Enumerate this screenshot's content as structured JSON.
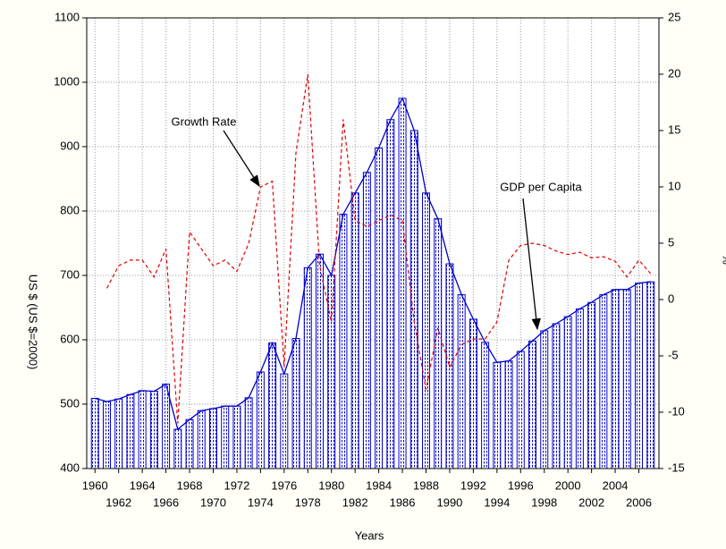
{
  "chart_data": {
    "type": "bar",
    "xlabel": "Years",
    "ylabel": "US $ (US $=2000)",
    "y2label": "%",
    "x": [
      1960,
      1961,
      1962,
      1963,
      1964,
      1965,
      1966,
      1967,
      1968,
      1969,
      1970,
      1971,
      1972,
      1973,
      1974,
      1975,
      1976,
      1977,
      1978,
      1979,
      1980,
      1981,
      1982,
      1983,
      1984,
      1985,
      1986,
      1987,
      1988,
      1989,
      1990,
      1991,
      1992,
      1993,
      1994,
      1995,
      1996,
      1997,
      1998,
      1999,
      2000,
      2001,
      2002,
      2003,
      2004,
      2005,
      2006,
      2007
    ],
    "xlim": [
      1959.3,
      2007.7
    ],
    "xticks": [
      1960,
      1962,
      1964,
      1966,
      1968,
      1970,
      1972,
      1974,
      1976,
      1978,
      1980,
      1982,
      1984,
      1986,
      1988,
      1990,
      1992,
      1994,
      1996,
      1998,
      2000,
      2002,
      2004,
      2006
    ],
    "ylim": [
      400,
      1100
    ],
    "yticks": [
      400,
      500,
      600,
      700,
      800,
      900,
      1000,
      1100
    ],
    "y2lim": [
      -15,
      25
    ],
    "y2ticks": [
      -15,
      -10,
      -5,
      0,
      5,
      10,
      15,
      20,
      25
    ],
    "grid": true,
    "series": [
      {
        "name": "GDP per Capita",
        "type": "bar",
        "color": "#0000cc",
        "values": [
          509,
          504,
          508,
          515,
          521,
          520,
          531,
          461,
          476,
          490,
          493,
          497,
          497,
          510,
          550,
          595,
          547,
          602,
          712,
          733,
          700,
          795,
          828,
          860,
          898,
          942,
          975,
          925,
          828,
          788,
          718,
          670,
          632,
          596,
          565,
          567,
          582,
          598,
          614,
          625,
          636,
          648,
          658,
          670,
          678,
          678,
          688,
          690
        ]
      },
      {
        "name": "Growth Rate",
        "type": "line",
        "axis": "y2",
        "color": "#e00000",
        "values": [
          null,
          1.0,
          3.0,
          3.5,
          3.5,
          2.0,
          4.5,
          -11,
          6,
          4.5,
          3,
          3.5,
          2.5,
          5,
          10,
          10.5,
          -6,
          13,
          20,
          3,
          -2,
          16,
          7,
          6.5,
          7,
          7.5,
          7,
          -2,
          -8,
          -2.5,
          -6,
          -4,
          -3.5,
          -3.5,
          -2,
          3.5,
          4.8,
          5,
          4.8,
          4.3,
          4,
          4.2,
          3.7,
          3.8,
          3.4,
          2,
          3.5,
          2.3
        ]
      }
    ]
  }
}
